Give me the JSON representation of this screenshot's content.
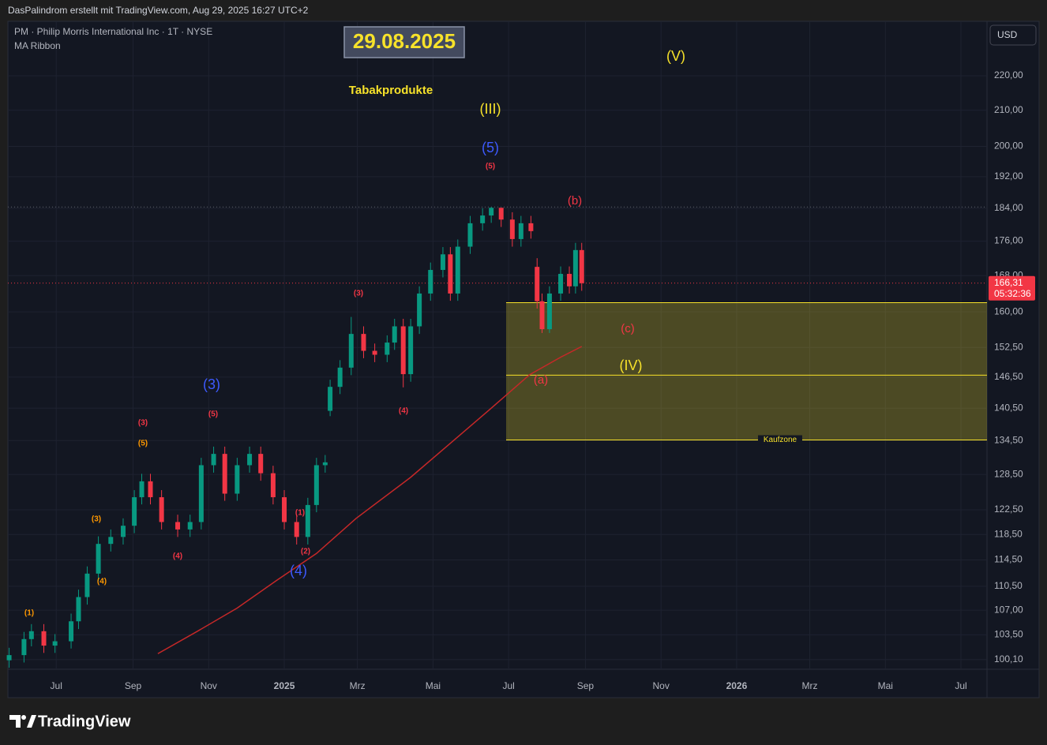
{
  "header": "DasPalindrom erstellt mit TradingView.com, Aug 29, 2025 16:27 UTC+2",
  "brand": "TradingView",
  "chart_data": {
    "type": "candlestick",
    "symbol": "PM · Philip Morris International Inc · 1T · NYSE",
    "currency": "USD",
    "title": "29.08.2025",
    "subtitle": "Tabakprodukte",
    "log_scale": true,
    "grid": true,
    "xlim": [
      "2024-05-23",
      "2026-07-22"
    ],
    "ylim": [
      98.8,
      236.5
    ],
    "xticks": [
      {
        "value": "2024-07-01",
        "label": "Jul"
      },
      {
        "value": "2024-09-01",
        "label": "Sep"
      },
      {
        "value": "2024-11-01",
        "label": "Nov"
      },
      {
        "value": "2025-01-01",
        "label": "2025"
      },
      {
        "value": "2025-03-01",
        "label": "Mrz"
      },
      {
        "value": "2025-05-01",
        "label": "Mai"
      },
      {
        "value": "2025-07-01",
        "label": "Jul"
      },
      {
        "value": "2025-09-01",
        "label": "Sep"
      },
      {
        "value": "2025-11-01",
        "label": "Nov"
      },
      {
        "value": "2026-01-01",
        "label": "2026"
      },
      {
        "value": "2026-03-01",
        "label": "Mrz"
      },
      {
        "value": "2026-05-01",
        "label": "Mai"
      },
      {
        "value": "2026-07-01",
        "label": "Jul"
      }
    ],
    "yticks": [
      {
        "value": 220,
        "label": "220,00"
      },
      {
        "value": 210,
        "label": "210,00"
      },
      {
        "value": 200,
        "label": "200,00"
      },
      {
        "value": 192,
        "label": "192,00"
      },
      {
        "value": 184,
        "label": "184,00"
      },
      {
        "value": 176,
        "label": "176,00"
      },
      {
        "value": 168,
        "label": "168,00"
      },
      {
        "value": 160,
        "label": "160,00"
      },
      {
        "value": 152.5,
        "label": "152,50"
      },
      {
        "value": 146.5,
        "label": "146,50"
      },
      {
        "value": 140.5,
        "label": "140,50"
      },
      {
        "value": 134.5,
        "label": "134,50"
      },
      {
        "value": 128.5,
        "label": "128,50"
      },
      {
        "value": 122.5,
        "label": "122,50"
      },
      {
        "value": 118.5,
        "label": "118,50"
      },
      {
        "value": 114.5,
        "label": "114,50"
      },
      {
        "value": 110.5,
        "label": "110,50"
      },
      {
        "value": 107,
        "label": "107,00"
      },
      {
        "value": 103.5,
        "label": "103,50"
      },
      {
        "value": 100.1,
        "label": "100,10"
      }
    ],
    "series": [
      {
        "up_color": "#089981",
        "down_color": "#f23645",
        "x": [
          "2024-05-24",
          "2024-06-05",
          "2024-06-11",
          "2024-06-21",
          "2024-06-30",
          "2024-07-13",
          "2024-07-19",
          "2024-07-26",
          "2024-08-04",
          "2024-08-14",
          "2024-08-24",
          "2024-09-02",
          "2024-09-08",
          "2024-09-15",
          "2024-09-24",
          "2024-10-07",
          "2024-10-17",
          "2024-10-26",
          "2024-11-05",
          "2024-11-14",
          "2024-11-24",
          "2024-12-04",
          "2024-12-13",
          "2024-12-23",
          "2025-01-01",
          "2025-01-11",
          "2025-01-20",
          "2025-01-27",
          "2025-02-03",
          "2025-02-07",
          "2025-02-15",
          "2025-02-24",
          "2025-03-06",
          "2025-03-15",
          "2025-03-25",
          "2025-03-31",
          "2025-04-07",
          "2025-04-13",
          "2025-04-20",
          "2025-04-29",
          "2025-05-09",
          "2025-05-15",
          "2025-05-21",
          "2025-05-31",
          "2025-06-10",
          "2025-06-17",
          "2025-06-25",
          "2025-07-04",
          "2025-07-11",
          "2025-07-19",
          "2025-07-24",
          "2025-07-28",
          "2025-08-03",
          "2025-08-12",
          "2025-08-19",
          "2025-08-24",
          "2025-08-29"
        ],
        "values": [
          [
            100.0,
            101.7,
            99.0,
            100.7
          ],
          [
            100.7,
            103.9,
            99.7,
            102.9
          ],
          [
            102.9,
            105.0,
            101.9,
            104.0
          ],
          [
            104.0,
            105.0,
            101.0,
            102.0
          ],
          [
            102.0,
            103.6,
            101.0,
            102.6
          ],
          [
            102.6,
            106.5,
            101.6,
            105.4
          ],
          [
            105.4,
            110.0,
            104.3,
            108.9
          ],
          [
            108.9,
            113.5,
            107.8,
            112.4
          ],
          [
            112.4,
            118.2,
            111.3,
            117.0
          ],
          [
            117.0,
            119.3,
            115.8,
            118.1
          ],
          [
            118.1,
            121.1,
            116.9,
            119.9
          ],
          [
            119.9,
            125.8,
            118.7,
            124.6
          ],
          [
            124.6,
            128.6,
            123.4,
            127.3
          ],
          [
            127.3,
            128.6,
            123.4,
            124.6
          ],
          [
            124.6,
            125.8,
            119.3,
            120.5
          ],
          [
            120.5,
            121.7,
            118.1,
            119.3
          ],
          [
            119.3,
            121.7,
            118.1,
            120.5
          ],
          [
            120.5,
            131.4,
            119.3,
            130.1
          ],
          [
            130.1,
            133.4,
            128.8,
            132.1
          ],
          [
            132.1,
            133.4,
            124.0,
            125.2
          ],
          [
            125.2,
            131.4,
            124.0,
            130.1
          ],
          [
            130.1,
            133.4,
            128.8,
            132.1
          ],
          [
            132.1,
            133.4,
            127.4,
            128.7
          ],
          [
            128.7,
            130.0,
            123.4,
            124.6
          ],
          [
            124.6,
            125.8,
            119.3,
            120.5
          ],
          [
            120.5,
            121.7,
            116.9,
            118.1
          ],
          [
            118.1,
            124.5,
            116.9,
            123.3
          ],
          [
            123.3,
            131.4,
            122.1,
            130.1
          ],
          [
            130.1,
            131.9,
            128.8,
            130.6
          ],
          [
            140.0,
            146.0,
            139.0,
            144.6
          ],
          [
            144.6,
            149.9,
            143.2,
            148.4
          ],
          [
            148.4,
            158.9,
            146.9,
            155.3
          ],
          [
            155.3,
            156.9,
            150.3,
            151.8
          ],
          [
            151.8,
            153.3,
            149.5,
            151.0
          ],
          [
            151.0,
            155.0,
            149.5,
            153.5
          ],
          [
            153.5,
            158.5,
            152.0,
            156.9
          ],
          [
            156.9,
            158.5,
            144.5,
            147.1
          ],
          [
            147.1,
            158.5,
            145.6,
            156.9
          ],
          [
            156.9,
            165.6,
            155.3,
            164.0
          ],
          [
            164.0,
            171.0,
            162.4,
            169.3
          ],
          [
            169.3,
            174.6,
            167.6,
            172.9
          ],
          [
            172.9,
            174.6,
            162.4,
            164.0
          ],
          [
            164.0,
            176.4,
            162.4,
            174.7
          ],
          [
            174.7,
            182.1,
            173.0,
            180.3
          ],
          [
            180.3,
            184.0,
            178.5,
            182.2
          ],
          [
            182.2,
            184.3,
            180.4,
            184.1
          ],
          [
            184.1,
            184.1,
            179.4,
            181.2
          ],
          [
            181.2,
            183.0,
            174.7,
            176.5
          ],
          [
            176.5,
            182.1,
            174.7,
            180.3
          ],
          [
            180.3,
            182.1,
            176.6,
            178.4
          ],
          [
            170.0,
            172.0,
            160.7,
            162.3
          ],
          [
            162.3,
            164.0,
            155.5,
            156.3
          ],
          [
            156.3,
            165.6,
            155.5,
            164.0
          ],
          [
            164.0,
            170.1,
            162.4,
            168.4
          ],
          [
            168.4,
            170.1,
            164.0,
            165.6
          ],
          [
            165.6,
            175.6,
            164.0,
            173.9
          ],
          [
            173.9,
            175.6,
            164.6,
            166.31
          ]
        ]
      },
      {
        "name": "MA Ribbon",
        "color": "#c62828",
        "x": [
          "2024-09-21",
          "2024-10-23",
          "2024-11-24",
          "2024-12-26",
          "2025-01-27",
          "2025-02-28",
          "2025-04-13",
          "2025-05-15",
          "2025-06-16",
          "2025-07-18",
          "2025-08-12",
          "2025-08-29"
        ],
        "values": [
          100.9,
          104.0,
          107.3,
          111.4,
          115.5,
          121.1,
          128.0,
          134.0,
          140.3,
          147.0,
          150.5,
          152.7
        ]
      }
    ],
    "last_price": {
      "value": 166.31,
      "label": "166,31",
      "color": "#f23645"
    },
    "countdown": "05:32:36",
    "high_line": 184.3,
    "zone": {
      "label": "Kaufzone",
      "start": "2025-06-29",
      "top": 162.0,
      "mid": 146.9,
      "bottom": 134.6,
      "color": "#f7e22a"
    },
    "annotations": [
      {
        "text": "(V)",
        "color": "#f7e22a"
      },
      {
        "text": "(III)",
        "color": "#f7e22a"
      },
      {
        "text": "(5)",
        "color": "#3d5afe"
      },
      {
        "text": "(5)",
        "color": "#f23645"
      },
      {
        "text": "(b)",
        "color": "#f23645"
      },
      {
        "text": "(3)",
        "color": "#f23645"
      },
      {
        "text": "(c)",
        "color": "#f23645"
      },
      {
        "text": "(IV)",
        "color": "#f7e22a"
      },
      {
        "text": "(a)",
        "color": "#f23645"
      },
      {
        "text": "(3)",
        "color": "#3d5afe"
      },
      {
        "text": "(5)",
        "color": "#f23645"
      },
      {
        "text": "(4)",
        "color": "#f23645"
      },
      {
        "text": "(3)",
        "color": "#f23645"
      },
      {
        "text": "(5)",
        "color": "#ff9800"
      },
      {
        "text": "(3)",
        "color": "#ff9800"
      },
      {
        "text": "(1)",
        "color": "#f23645"
      },
      {
        "text": "(2)",
        "color": "#f23645"
      },
      {
        "text": "(4)",
        "color": "#f23645"
      },
      {
        "text": "(4)",
        "color": "#3d5afe"
      },
      {
        "text": "(4)",
        "color": "#ff9800"
      },
      {
        "text": "(1)",
        "color": "#ff9800"
      }
    ]
  }
}
